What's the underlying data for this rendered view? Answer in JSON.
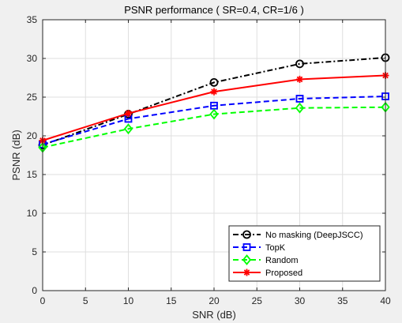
{
  "chart_data": {
    "type": "line",
    "title": "PSNR performance ( SR=0.4, CR=1/6 )",
    "xlabel": "SNR (dB)",
    "ylabel": "PSNR (dB)",
    "xlim": [
      0,
      40
    ],
    "ylim": [
      0,
      35
    ],
    "xticks": [
      "0",
      "5",
      "10",
      "15",
      "20",
      "25",
      "30",
      "35",
      "40"
    ],
    "yticks": [
      "0",
      "5",
      "10",
      "15",
      "20",
      "25",
      "30",
      "35"
    ],
    "grid": true,
    "legend_position": "bottom-right",
    "x": [
      0,
      10,
      20,
      30,
      40
    ],
    "series": [
      {
        "name": "No masking (DeepJSCC)",
        "color": "#000000",
        "style": "dash-dot",
        "marker": "circle",
        "values": [
          18.8,
          22.8,
          26.9,
          29.3,
          30.1
        ]
      },
      {
        "name": "TopK",
        "color": "#0000ff",
        "style": "dashed",
        "marker": "square",
        "values": [
          18.9,
          22.2,
          23.9,
          24.8,
          25.1
        ]
      },
      {
        "name": "Random",
        "color": "#00ff00",
        "style": "dashed",
        "marker": "diamond",
        "values": [
          18.5,
          20.9,
          22.8,
          23.6,
          23.7
        ]
      },
      {
        "name": "Proposed",
        "color": "#ff0000",
        "style": "solid",
        "marker": "asterisk",
        "values": [
          19.4,
          22.9,
          25.7,
          27.3,
          27.8
        ]
      }
    ]
  }
}
